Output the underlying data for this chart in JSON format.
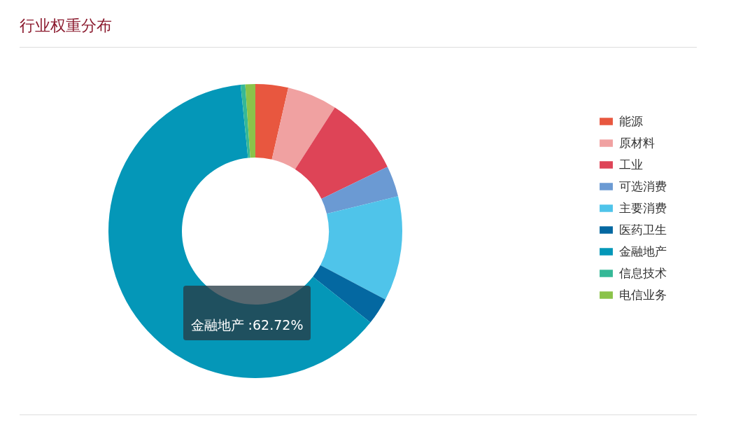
{
  "chart_data": {
    "type": "donut",
    "title": "行业权重分布",
    "categories": [
      "能源",
      "原材料",
      "工业",
      "可选消费",
      "主要消费",
      "医药卫生",
      "金融地产",
      "信息技术",
      "电信业务"
    ],
    "values": [
      3.6,
      5.5,
      8.7,
      3.4,
      11.5,
      2.98,
      62.72,
      0.5,
      1.1
    ],
    "colors": [
      "#e8573f",
      "#f0a1a1",
      "#de4457",
      "#6b9ad3",
      "#4fc4ea",
      "#0468a1",
      "#0497b8",
      "#35b897",
      "#8bc34a"
    ],
    "legend": "right",
    "annotations": [
      "金融地产 :62.72%"
    ]
  }
}
